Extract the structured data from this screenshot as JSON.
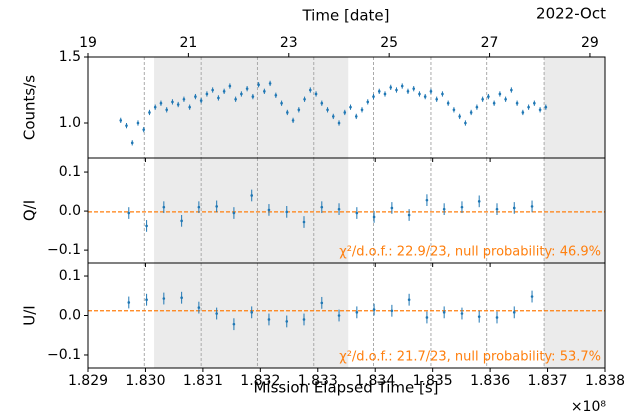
{
  "chart_data": {
    "type": "errorbar",
    "xlabel": "Mission Elapsed Time [s]",
    "x_scale_label": "×10⁸",
    "xlim": [
      1.829,
      1.838
    ],
    "xticks": [
      {
        "value": 1.829,
        "label": "1.829"
      },
      {
        "value": 1.83,
        "label": "1.830"
      },
      {
        "value": 1.831,
        "label": "1.831"
      },
      {
        "value": 1.832,
        "label": "1.832"
      },
      {
        "value": 1.833,
        "label": "1.833"
      },
      {
        "value": 1.834,
        "label": "1.834"
      },
      {
        "value": 1.835,
        "label": "1.835"
      },
      {
        "value": 1.836,
        "label": "1.836"
      },
      {
        "value": 1.837,
        "label": "1.837"
      },
      {
        "value": 1.838,
        "label": "1.838"
      }
    ],
    "x2label": "Time [date]",
    "x2_extra_label": "2022-Oct",
    "x2lim": [
      19,
      29.3
    ],
    "x2ticks": [
      19,
      21,
      23,
      25,
      27,
      29
    ],
    "shaded": [
      [
        1.83015,
        1.83353
      ],
      [
        1.83694,
        1.838
      ]
    ],
    "vlines": [
      1.82998,
      1.83097,
      1.83195,
      1.83293,
      1.83397,
      1.83497,
      1.83594,
      1.83694
    ],
    "panels": [
      {
        "ylabel": "Counts/s",
        "color": "#1f77b4",
        "ylim": [
          0.735,
          1.5
        ],
        "yticks": [
          {
            "value": 1.0,
            "label": "1.0"
          },
          {
            "value": 1.5,
            "label": "1.5"
          }
        ],
        "yerr": 0.02,
        "x": [
          1.82957,
          1.82967,
          1.82977,
          1.82987,
          1.82997,
          1.83007,
          1.83017,
          1.83027,
          1.83037,
          1.83047,
          1.83057,
          1.83067,
          1.83077,
          1.83087,
          1.83097,
          1.83107,
          1.83117,
          1.83127,
          1.83137,
          1.83147,
          1.83157,
          1.83167,
          1.83177,
          1.83187,
          1.83197,
          1.83207,
          1.83217,
          1.83227,
          1.83237,
          1.83247,
          1.83257,
          1.83267,
          1.83277,
          1.83287,
          1.83297,
          1.83307,
          1.83317,
          1.83327,
          1.83337,
          1.83347,
          1.83357,
          1.83367,
          1.83377,
          1.83387,
          1.83397,
          1.83407,
          1.83417,
          1.83427,
          1.83437,
          1.83447,
          1.83457,
          1.83467,
          1.83477,
          1.83487,
          1.83497,
          1.83507,
          1.83517,
          1.83527,
          1.83537,
          1.83547,
          1.83557,
          1.83567,
          1.83577,
          1.83587,
          1.83597,
          1.83607,
          1.83617,
          1.83627,
          1.83637,
          1.83647,
          1.83657,
          1.83667,
          1.83677,
          1.83687,
          1.83697
        ],
        "values": [
          1.02,
          0.98,
          0.85,
          1.0,
          0.95,
          1.08,
          1.12,
          1.15,
          1.1,
          1.16,
          1.14,
          1.18,
          1.12,
          1.2,
          1.17,
          1.22,
          1.25,
          1.19,
          1.24,
          1.28,
          1.18,
          1.22,
          1.26,
          1.2,
          1.29,
          1.24,
          1.3,
          1.21,
          1.15,
          1.08,
          1.02,
          1.1,
          1.18,
          1.25,
          1.22,
          1.15,
          1.1,
          1.05,
          1.0,
          1.08,
          1.12,
          1.05,
          1.1,
          1.16,
          1.2,
          1.24,
          1.22,
          1.27,
          1.25,
          1.28,
          1.24,
          1.26,
          1.22,
          1.2,
          1.24,
          1.18,
          1.22,
          1.15,
          1.1,
          1.05,
          1.0,
          1.08,
          1.12,
          1.18,
          1.2,
          1.15,
          1.22,
          1.18,
          1.25,
          1.15,
          1.08,
          1.12,
          1.15,
          1.1,
          1.12
        ]
      },
      {
        "ylabel": "Q/I",
        "color": "#1f77b4",
        "ylim": [
          -0.133,
          0.136
        ],
        "yticks": [
          {
            "value": 0.1,
            "label": "0.1"
          },
          {
            "value": 0.0,
            "label": "0.0"
          },
          {
            "value": -0.1,
            "label": "−0.1"
          }
        ],
        "yerr": 0.015,
        "hline": -0.002,
        "hline_color": "#ff7f0e",
        "annotation": "χ²/d.o.f.: 22.9/23, null probability: 46.9%",
        "x": [
          1.82971,
          1.83002,
          1.83032,
          1.83063,
          1.83093,
          1.83124,
          1.83154,
          1.83185,
          1.83215,
          1.83246,
          1.83276,
          1.83307,
          1.83337,
          1.83368,
          1.83398,
          1.83429,
          1.83459,
          1.8349,
          1.8352,
          1.83551,
          1.83581,
          1.83612,
          1.83642,
          1.83673
        ],
        "values": [
          -0.005,
          -0.038,
          0.01,
          -0.025,
          0.01,
          0.012,
          -0.005,
          0.04,
          0.003,
          -0.002,
          -0.028,
          0.01,
          0.005,
          -0.005,
          -0.015,
          0.008,
          -0.01,
          0.028,
          0.005,
          0.01,
          0.025,
          0.005,
          0.008,
          0.012
        ]
      },
      {
        "ylabel": "U/I",
        "color": "#1f77b4",
        "ylim": [
          -0.133,
          0.133
        ],
        "yticks": [
          {
            "value": 0.1,
            "label": "0.1"
          },
          {
            "value": 0.0,
            "label": "0.0"
          },
          {
            "value": -0.1,
            "label": "−0.1"
          }
        ],
        "yerr": 0.015,
        "hline": 0.012,
        "hline_color": "#ff7f0e",
        "annotation": "χ²/d.o.f.: 21.7/23, null probability: 53.7%",
        "x": [
          1.82971,
          1.83002,
          1.83032,
          1.83063,
          1.83093,
          1.83124,
          1.83154,
          1.83185,
          1.83215,
          1.83246,
          1.83276,
          1.83307,
          1.83337,
          1.83368,
          1.83398,
          1.83429,
          1.83459,
          1.8349,
          1.8352,
          1.83551,
          1.83581,
          1.83612,
          1.83642,
          1.83673
        ],
        "values": [
          0.033,
          0.04,
          0.043,
          0.045,
          0.02,
          0.005,
          -0.022,
          0.008,
          -0.01,
          -0.015,
          -0.01,
          0.032,
          0,
          0.008,
          0.015,
          0.012,
          0.04,
          -0.005,
          0.008,
          0.005,
          -0.003,
          -0.005,
          0.008,
          0.048
        ]
      }
    ]
  }
}
